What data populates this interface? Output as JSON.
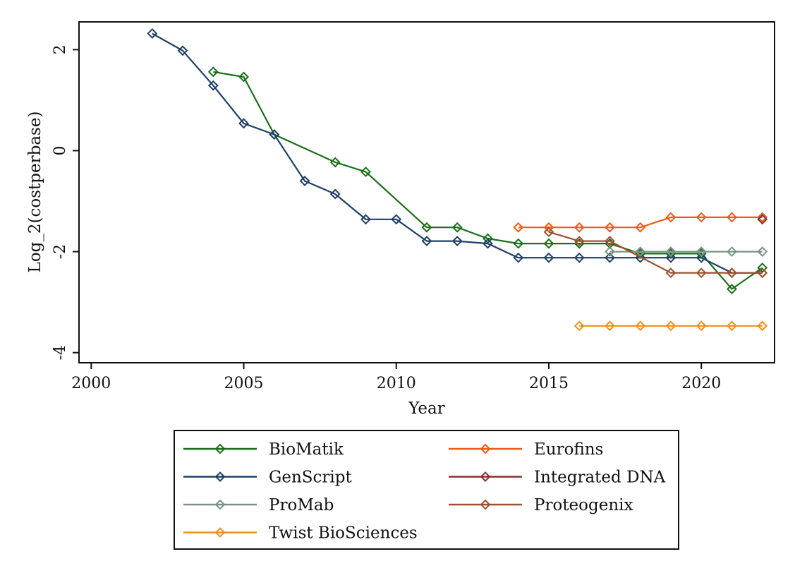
{
  "chart_data": {
    "type": "line",
    "title": "",
    "xlabel": "Year",
    "ylabel": "Log_2(costperbase)",
    "xlim": [
      1999.6,
      2022.4
    ],
    "ylim": [
      -4.2,
      2.55
    ],
    "xticks": [
      2000,
      2005,
      2010,
      2015,
      2020
    ],
    "yticks": [
      -4,
      -2,
      0,
      2
    ],
    "marker": "hollow-diamond",
    "grid": false,
    "legend": {
      "placement": "bottom",
      "columns": 2,
      "entries": [
        "BioMatik",
        "Eurofins",
        "GenScript",
        "Integrated DNA",
        "ProMab",
        "Proteogenix",
        "Twist BioSciences"
      ]
    },
    "series": [
      {
        "name": "BioMatik",
        "color": "#1a6e1a",
        "x": [
          2004,
          2005,
          2006,
          2008,
          2009,
          2011,
          2012,
          2013,
          2014,
          2015,
          2016,
          2017,
          2018,
          2019,
          2020,
          2021,
          2022
        ],
        "y": [
          1.56,
          1.46,
          0.32,
          -0.23,
          -0.42,
          -1.52,
          -1.52,
          -1.74,
          -1.84,
          -1.84,
          -1.84,
          -1.84,
          -2.04,
          -2.04,
          -2.04,
          -2.74,
          -2.32
        ]
      },
      {
        "name": "GenScript",
        "color": "#1f3f66",
        "x": [
          2002,
          2003,
          2004,
          2005,
          2006,
          2007,
          2008,
          2009,
          2010,
          2011,
          2012,
          2013,
          2014,
          2015,
          2016,
          2017,
          2018,
          2019,
          2020,
          2021,
          2022
        ],
        "y": [
          2.32,
          1.98,
          1.29,
          0.54,
          0.32,
          -0.6,
          -0.86,
          -1.36,
          -1.36,
          -1.79,
          -1.79,
          -1.84,
          -2.12,
          -2.12,
          -2.12,
          -2.12,
          -2.12,
          -2.12,
          -2.12,
          -2.42,
          -2.42
        ]
      },
      {
        "name": "ProMab",
        "color": "#7a9484",
        "x": [
          2017,
          2018,
          2019,
          2020,
          2021,
          2022
        ],
        "y": [
          -2.0,
          -2.0,
          -2.0,
          -2.0,
          -2.0,
          -2.0
        ]
      },
      {
        "name": "Twist BioSciences",
        "color": "#f0901e",
        "x": [
          2016,
          2017,
          2018,
          2019,
          2020,
          2021,
          2022
        ],
        "y": [
          -3.47,
          -3.47,
          -3.47,
          -3.47,
          -3.47,
          -3.47,
          -3.47
        ]
      },
      {
        "name": "Eurofins",
        "color": "#ef5a16",
        "x": [
          2014,
          2015,
          2016,
          2017,
          2018,
          2019,
          2020,
          2021,
          2022
        ],
        "y": [
          -1.52,
          -1.52,
          -1.52,
          -1.52,
          -1.52,
          -1.32,
          -1.32,
          -1.32,
          -1.32
        ]
      },
      {
        "name": "Integrated DNA",
        "color": "#8b2f33",
        "x": [
          2022
        ],
        "y": [
          -1.36
        ]
      },
      {
        "name": "Proteogenix",
        "color": "#9c5230",
        "x": [
          2015,
          2016,
          2017,
          2019,
          2020,
          2021,
          2022
        ],
        "y": [
          -1.61,
          -1.79,
          -1.79,
          -2.42,
          -2.42,
          -2.42,
          -2.42
        ]
      }
    ]
  }
}
